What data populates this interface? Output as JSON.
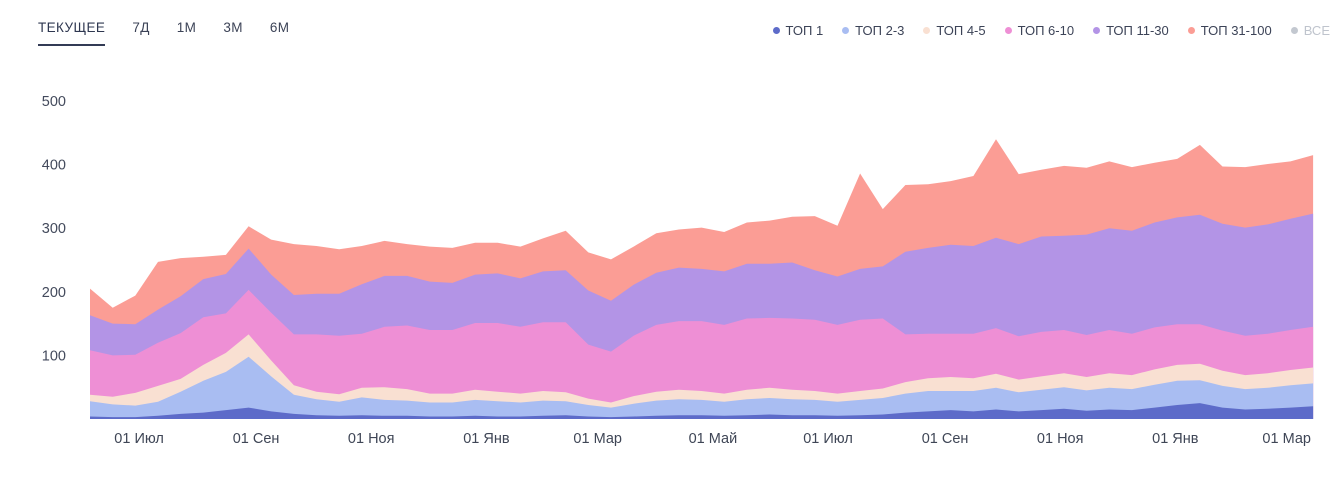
{
  "tabs": {
    "items": [
      {
        "label": "ТЕКУЩЕЕ",
        "active": true
      },
      {
        "label": "7Д",
        "active": false
      },
      {
        "label": "1М",
        "active": false
      },
      {
        "label": "3М",
        "active": false
      },
      {
        "label": "6М",
        "active": false
      }
    ]
  },
  "legend": {
    "items": [
      {
        "label": "ТОП 1",
        "color": "#5d6bc9",
        "muted": false
      },
      {
        "label": "ТОП 2-3",
        "color": "#a9bdf2",
        "muted": false
      },
      {
        "label": "ТОП 4-5",
        "color": "#f9e0d2",
        "muted": false
      },
      {
        "label": "ТОП 6-10",
        "color": "#ee8fd5",
        "muted": false
      },
      {
        "label": "ТОП 11-30",
        "color": "#b394e6",
        "muted": false
      },
      {
        "label": "ТОП 31-100",
        "color": "#fb9d95",
        "muted": false
      },
      {
        "label": "ВСЕ",
        "color": "#c3c8d0",
        "muted": true
      }
    ]
  },
  "chart_data": {
    "type": "area",
    "stacked": true,
    "title": "",
    "xlabel": "",
    "ylabel": "",
    "grid": false,
    "legend_position": "top-right",
    "ylim": [
      0,
      500
    ],
    "y_ticks": [
      100,
      200,
      300,
      400,
      500
    ],
    "x_unit": "days",
    "x_domain": [
      0,
      658
    ],
    "x_ticks": [
      {
        "label": "01 Июл",
        "x": 26
      },
      {
        "label": "01 Сен",
        "x": 88
      },
      {
        "label": "01 Ноя",
        "x": 149
      },
      {
        "label": "01 Янв",
        "x": 210
      },
      {
        "label": "01 Мар",
        "x": 269
      },
      {
        "label": "01 Май",
        "x": 330
      },
      {
        "label": "01 Июл",
        "x": 391
      },
      {
        "label": "01 Сен",
        "x": 453
      },
      {
        "label": "01 Ноя",
        "x": 514
      },
      {
        "label": "01 Янв",
        "x": 575
      },
      {
        "label": "01 Мар",
        "x": 634
      }
    ],
    "x": [
      0,
      12,
      24,
      36,
      48,
      60,
      72,
      84,
      96,
      108,
      120,
      132,
      144,
      156,
      168,
      180,
      192,
      204,
      216,
      228,
      240,
      252,
      264,
      276,
      288,
      300,
      312,
      324,
      336,
      348,
      360,
      372,
      384,
      396,
      408,
      420,
      432,
      444,
      456,
      468,
      480,
      492,
      504,
      516,
      528,
      540,
      552,
      564,
      576,
      588,
      600,
      612,
      624,
      636,
      648
    ],
    "series": [
      {
        "id": "top1",
        "name": "ТОП 1",
        "color": "#5d6bc9",
        "values": [
          4,
          3,
          3,
          5,
          8,
          10,
          14,
          18,
          12,
          8,
          6,
          5,
          6,
          5,
          5,
          4,
          4,
          5,
          4,
          4,
          5,
          6,
          4,
          3,
          4,
          5,
          6,
          6,
          5,
          6,
          7,
          6,
          6,
          5,
          6,
          7,
          10,
          12,
          14,
          12,
          15,
          12,
          14,
          16,
          13,
          15,
          14,
          18,
          22,
          25,
          18,
          15,
          16,
          18,
          20
        ]
      },
      {
        "id": "top2_3",
        "name": "ТОП 2-3",
        "color": "#a9bdf2",
        "values": [
          24,
          20,
          18,
          22,
          35,
          50,
          60,
          80,
          55,
          30,
          25,
          22,
          28,
          25,
          24,
          22,
          22,
          25,
          24,
          22,
          24,
          22,
          18,
          15,
          20,
          24,
          25,
          24,
          22,
          25,
          26,
          25,
          24,
          22,
          24,
          26,
          30,
          32,
          30,
          32,
          34,
          30,
          32,
          34,
          32,
          34,
          33,
          36,
          38,
          36,
          34,
          32,
          33,
          35,
          36
        ]
      },
      {
        "id": "top4_5",
        "name": "ТОП 4-5",
        "color": "#f9e0d2",
        "values": [
          10,
          12,
          20,
          25,
          20,
          25,
          30,
          35,
          25,
          15,
          12,
          12,
          15,
          20,
          18,
          14,
          14,
          16,
          15,
          14,
          15,
          14,
          10,
          8,
          12,
          14,
          15,
          14,
          13,
          15,
          16,
          15,
          14,
          13,
          14,
          15,
          18,
          20,
          22,
          20,
          22,
          20,
          21,
          22,
          21,
          23,
          22,
          24,
          25,
          26,
          24,
          22,
          23,
          24,
          25
        ]
      },
      {
        "id": "top6_10",
        "name": "ТОП 6-10",
        "color": "#ee8fd5",
        "values": [
          70,
          65,
          60,
          68,
          72,
          75,
          62,
          70,
          75,
          80,
          90,
          92,
          85,
          95,
          100,
          100,
          100,
          105,
          108,
          105,
          108,
          110,
          85,
          80,
          95,
          105,
          108,
          110,
          108,
          112,
          110,
          112,
          112,
          108,
          112,
          110,
          75,
          70,
          68,
          70,
          72,
          68,
          70,
          68,
          66,
          68,
          65,
          66,
          64,
          62,
          63,
          62,
          62,
          63,
          64
        ]
      },
      {
        "id": "top11_30",
        "name": "ТОП 11-30",
        "color": "#b394e6",
        "values": [
          55,
          50,
          48,
          52,
          58,
          60,
          62,
          65,
          60,
          62,
          64,
          66,
          78,
          80,
          78,
          76,
          74,
          76,
          78,
          76,
          80,
          82,
          85,
          80,
          80,
          82,
          84,
          82,
          84,
          86,
          85,
          88,
          78,
          76,
          80,
          82,
          130,
          135,
          140,
          138,
          142,
          145,
          150,
          148,
          158,
          160,
          162,
          165,
          168,
          172,
          168,
          170,
          172,
          175,
          178
        ]
      },
      {
        "id": "top31_100",
        "name": "ТОП 31-100",
        "color": "#fb9d95",
        "values": [
          42,
          25,
          45,
          75,
          60,
          35,
          30,
          35,
          55,
          80,
          75,
          70,
          60,
          55,
          50,
          55,
          55,
          50,
          48,
          50,
          52,
          62,
          60,
          65,
          60,
          62,
          60,
          65,
          62,
          65,
          68,
          72,
          85,
          80,
          150,
          90,
          105,
          100,
          100,
          110,
          155,
          110,
          105,
          110,
          105,
          105,
          100,
          94,
          92,
          110,
          90,
          95,
          95,
          90,
          92
        ]
      }
    ]
  }
}
